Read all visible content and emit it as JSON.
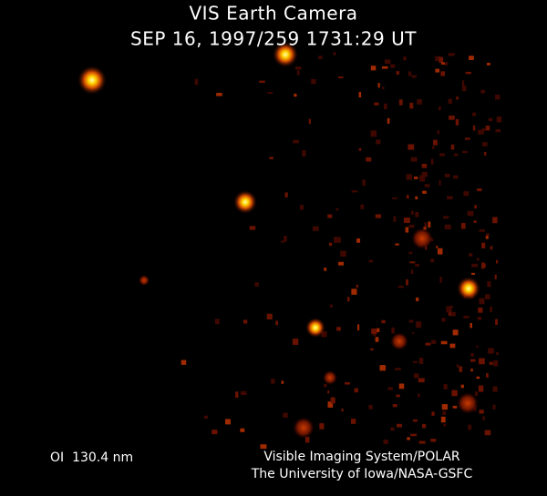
{
  "header": {
    "title": "VIS Earth Camera",
    "timestamp": "SEP 16, 1997/259 1731:29 UT"
  },
  "footer": {
    "filter": "OI  130.4 nm",
    "credit_lines": [
      "Visible Imaging System/POLAR",
      "The University of Iowa/NASA-GSFC"
    ]
  }
}
